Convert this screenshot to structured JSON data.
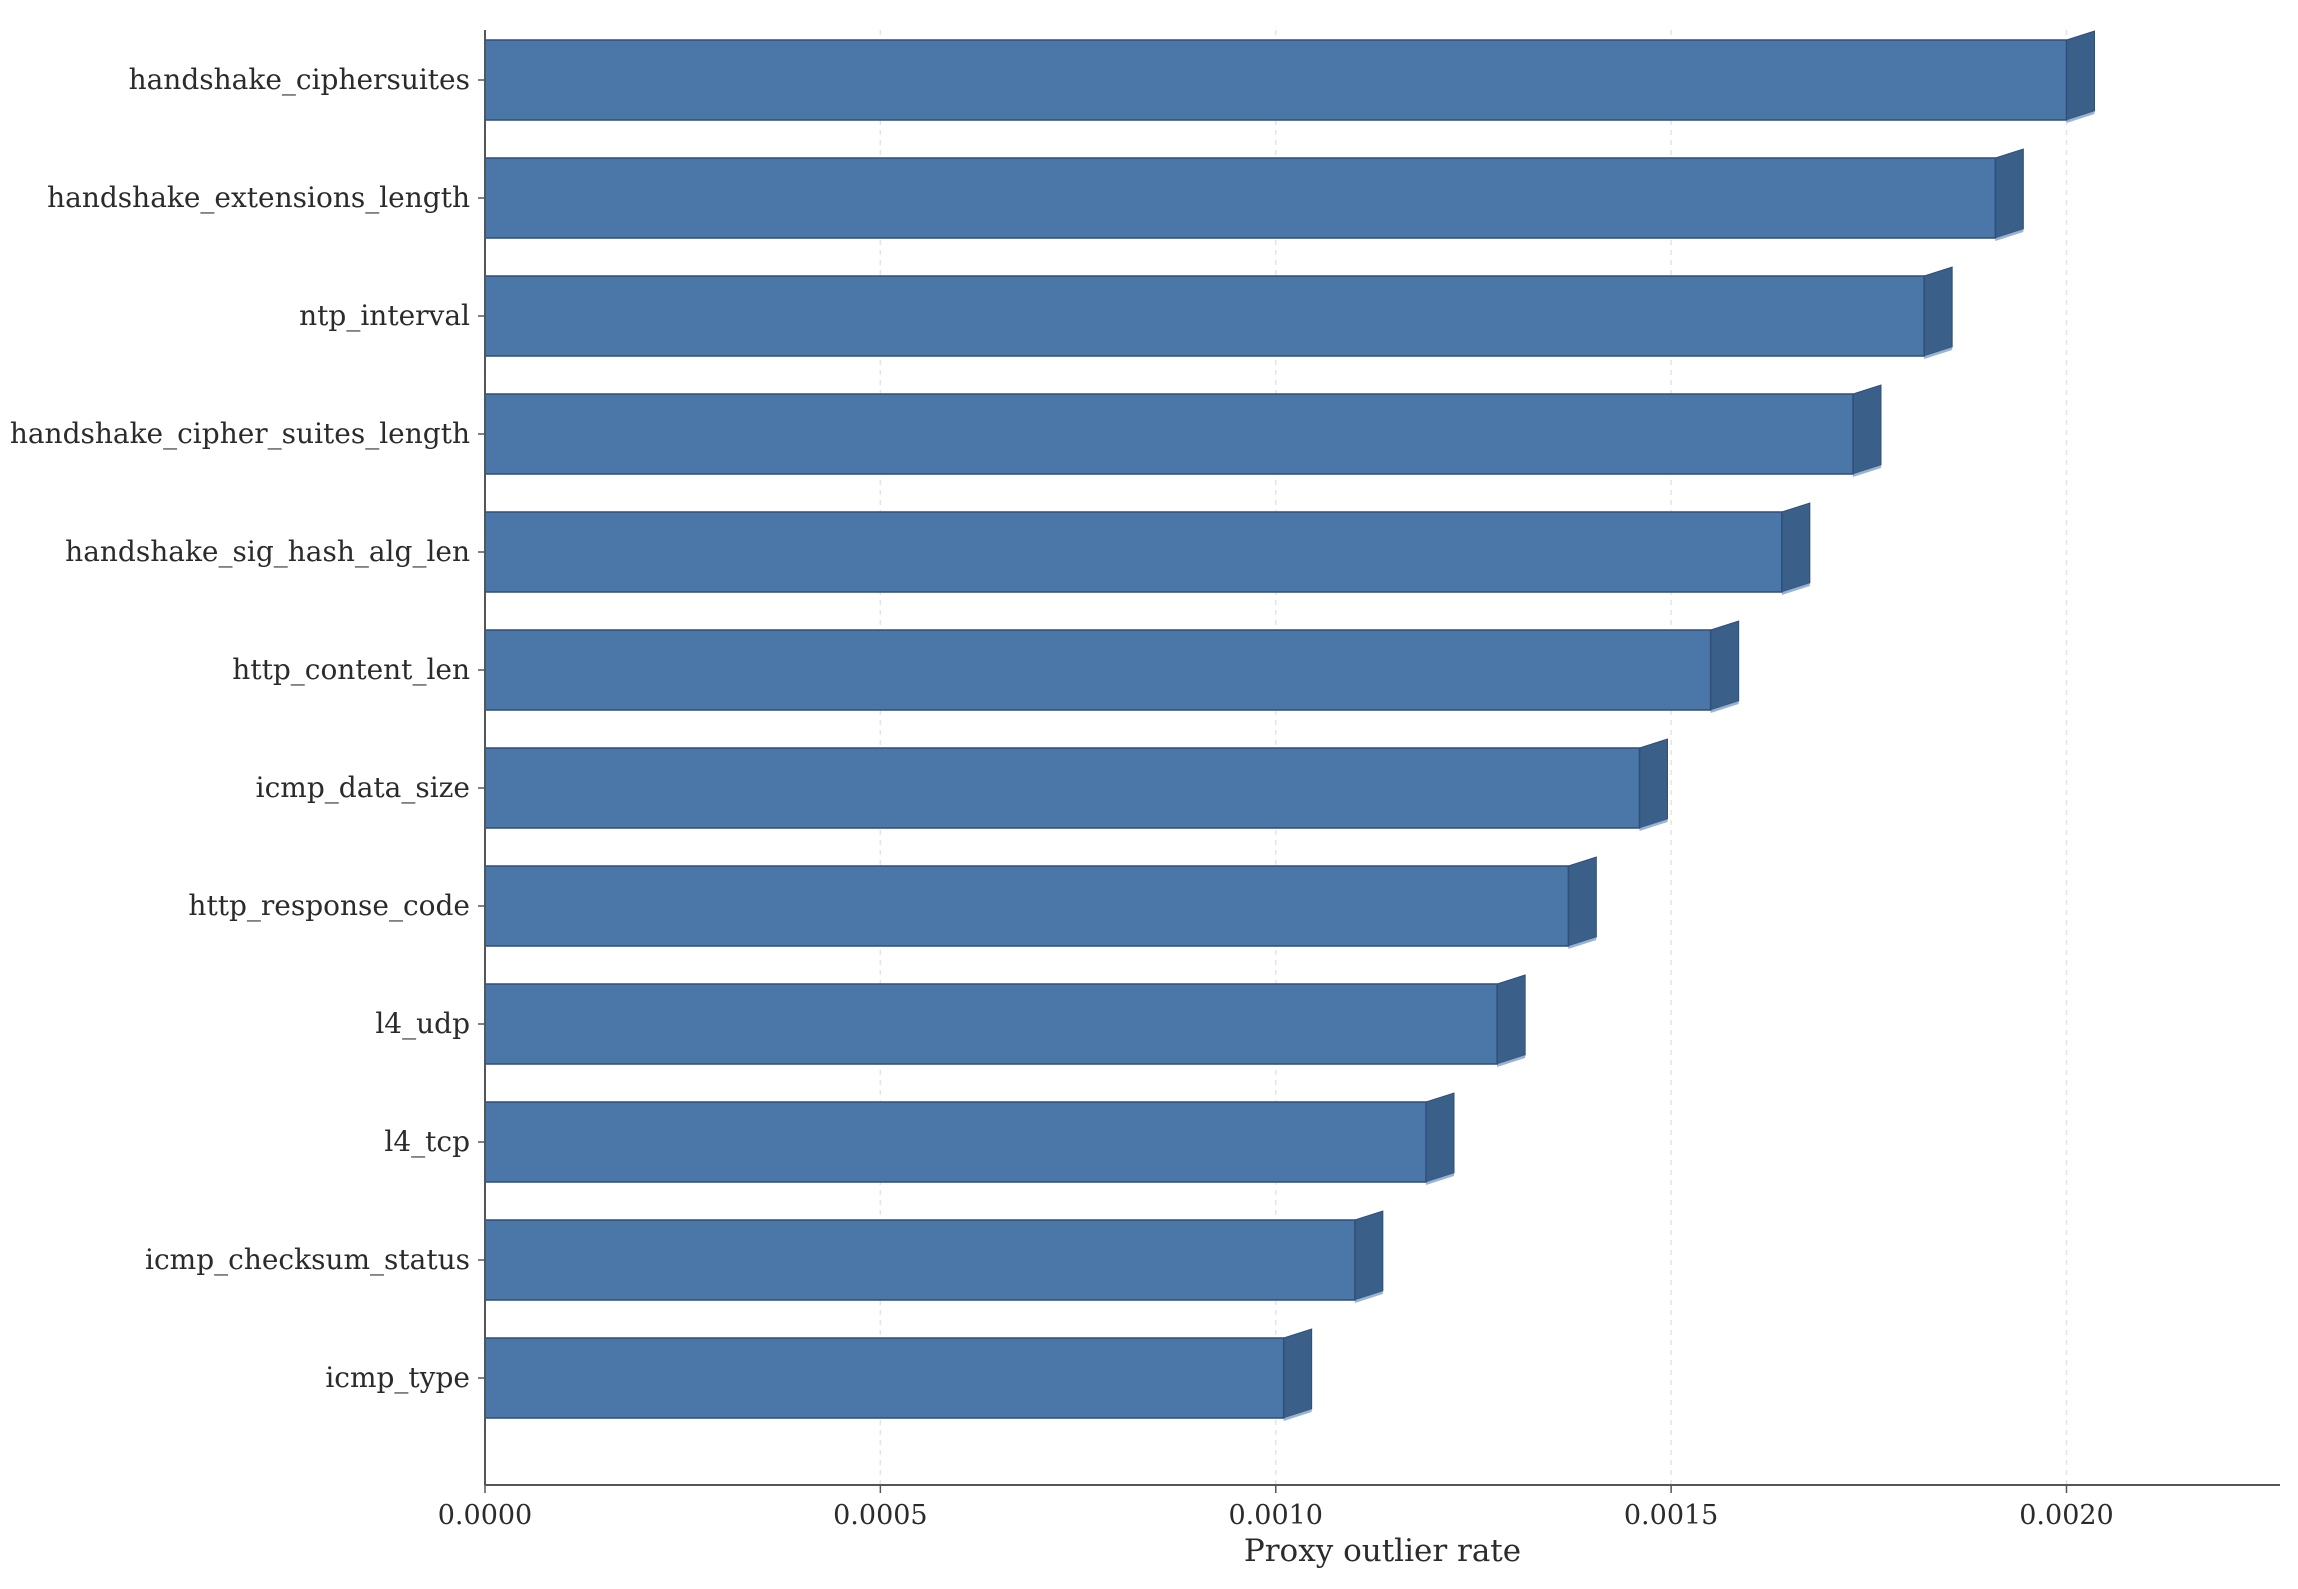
{
  "chart_data": {
    "type": "bar",
    "orientation": "horizontal",
    "categories": [
      "handshake_ciphersuites",
      "handshake_extensions_length",
      "ntp_interval",
      "handshake_cipher_suites_length",
      "handshake_sig_hash_alg_len",
      "http_content_len",
      "icmp_data_size",
      "http_response_code",
      "l4_udp",
      "l4_tcp",
      "icmp_checksum_status",
      "icmp_type"
    ],
    "values": [
      0.002,
      0.00191,
      0.00182,
      0.00173,
      0.00164,
      0.00155,
      0.00146,
      0.00137,
      0.00128,
      0.00119,
      0.0011,
      0.00101
    ],
    "xlabel": "Proxy outlier rate",
    "ylabel": "",
    "xlim": [
      0,
      0.00227
    ],
    "xticks": [
      0,
      0.0005,
      0.001,
      0.0015,
      0.002
    ],
    "xtick_labels": [
      "0.0000",
      "0.0005",
      "0.0010",
      "0.0015",
      "0.0020"
    ],
    "grid": "vertical dashed, light",
    "style": "3d-extruded bars",
    "colors": {
      "bar_face": "#4a76a8",
      "bar_side": "#3a5f88",
      "bar_edge": "#2f4f78",
      "axis": "#555555",
      "grid": "#e4e4e4"
    }
  }
}
